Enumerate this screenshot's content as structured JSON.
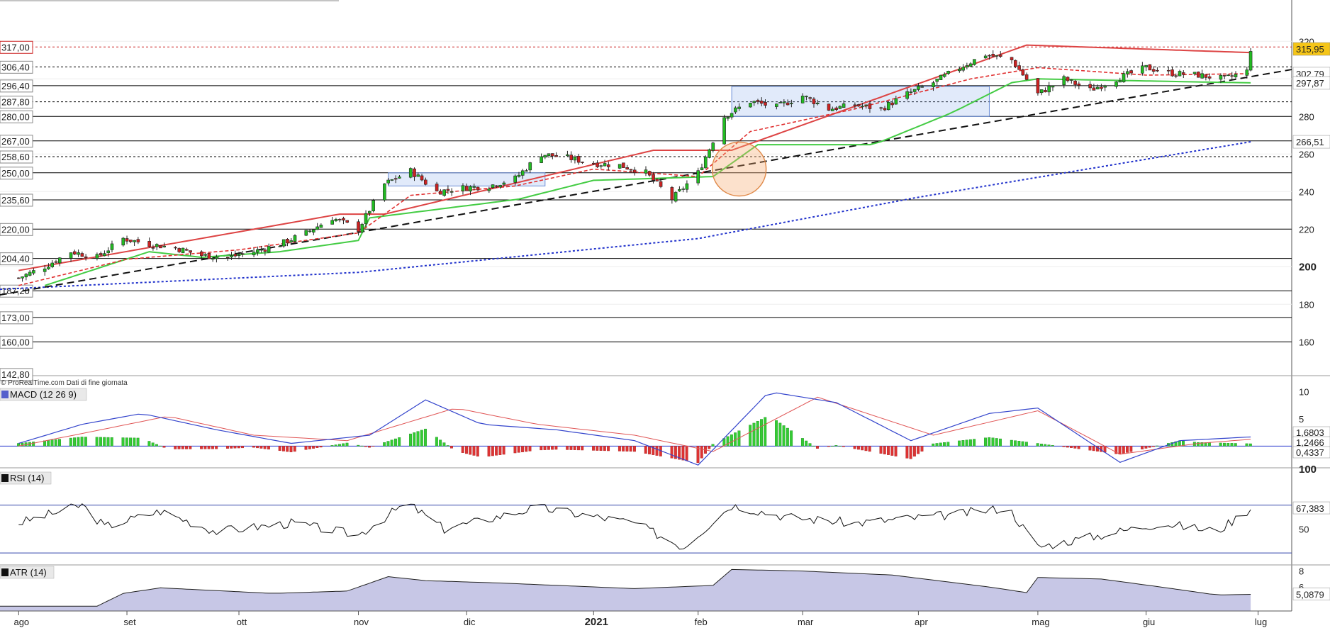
{
  "chart_data": {
    "type": "candlestick",
    "source_note": "© ProRealTime.com  Dati di fine giornata",
    "x_month_labels": [
      {
        "label": "ago",
        "date": "2020-08-03"
      },
      {
        "label": "set",
        "date": "2020-09-01"
      },
      {
        "label": "ott",
        "date": "2020-10-01"
      },
      {
        "label": "nov",
        "date": "2020-11-02"
      },
      {
        "label": "dic",
        "date": "2020-12-01"
      },
      {
        "label": "2021",
        "date": "2021-01-04",
        "bold": true
      },
      {
        "label": "feb",
        "date": "2021-02-01"
      },
      {
        "label": "mar",
        "date": "2021-03-01"
      },
      {
        "label": "apr",
        "date": "2021-04-01"
      },
      {
        "label": "mag",
        "date": "2021-05-03"
      },
      {
        "label": "giu",
        "date": "2021-06-01"
      },
      {
        "label": "lug",
        "date": "2021-07-01"
      }
    ],
    "x_range": [
      "2020-07-29",
      "2021-07-10"
    ],
    "price": {
      "y_ticks": [
        160,
        180,
        200,
        220,
        240,
        260,
        280,
        300,
        320
      ],
      "ylim": [
        142,
        342
      ],
      "levels_left": [
        {
          "label": "317,00",
          "value": 317.0,
          "style": "dotted-red",
          "color": "#cc2222"
        },
        {
          "label": "306,40",
          "value": 306.4,
          "style": "dotted"
        },
        {
          "label": "296,40",
          "value": 296.4,
          "style": "solid"
        },
        {
          "label": "287,80",
          "value": 287.8,
          "style": "dotted"
        },
        {
          "label": "280,00",
          "value": 280.0,
          "style": "solid"
        },
        {
          "label": "267,00",
          "value": 267.0,
          "style": "solid"
        },
        {
          "label": "258,60",
          "value": 258.6,
          "style": "dotted"
        },
        {
          "label": "250,00",
          "value": 250.0,
          "style": "solid"
        },
        {
          "label": "235,60",
          "value": 235.6,
          "style": "solid"
        },
        {
          "label": "220,00",
          "value": 220.0,
          "style": "solid"
        },
        {
          "label": "204,40",
          "value": 204.4,
          "style": "solid"
        },
        {
          "label": "187,20",
          "value": 187.2,
          "style": "solid"
        },
        {
          "label": "173,00",
          "value": 173.0,
          "style": "solid"
        },
        {
          "label": "160,00",
          "value": 160.0,
          "style": "solid"
        },
        {
          "label": "142,80",
          "value": 142.8,
          "style": "none"
        }
      ],
      "right_badges": [
        {
          "label": "315,95",
          "value": 315.95,
          "bg": "#f5c518",
          "fg": "#000000"
        },
        {
          "label": "302,79",
          "value": 302.79,
          "bg": "#ffffff",
          "fg": "#cc2222"
        },
        {
          "label": "297,87",
          "value": 297.87,
          "bg": "#ffffff",
          "fg": "#22aa22"
        },
        {
          "label": "266,51",
          "value": 266.51,
          "bg": "#ffffff",
          "fg": "#2233cc"
        }
      ],
      "ohlc_anchors": [
        [
          "2020-08-03",
          194
        ],
        [
          "2020-08-10",
          200
        ],
        [
          "2020-08-17",
          208
        ],
        [
          "2020-08-24",
          205
        ],
        [
          "2020-08-31",
          215
        ],
        [
          "2020-09-07",
          212
        ],
        [
          "2020-09-14",
          210
        ],
        [
          "2020-09-21",
          206
        ],
        [
          "2020-09-28",
          205
        ],
        [
          "2020-10-05",
          208
        ],
        [
          "2020-10-12",
          212
        ],
        [
          "2020-10-19",
          218
        ],
        [
          "2020-10-26",
          226
        ],
        [
          "2020-11-02",
          220
        ],
        [
          "2020-11-09",
          244
        ],
        [
          "2020-11-16",
          251
        ],
        [
          "2020-11-23",
          240
        ],
        [
          "2020-11-30",
          242
        ],
        [
          "2020-12-07",
          243
        ],
        [
          "2020-12-14",
          247
        ],
        [
          "2020-12-21",
          260
        ],
        [
          "2020-12-28",
          258
        ],
        [
          "2021-01-04",
          255
        ],
        [
          "2021-01-11",
          254
        ],
        [
          "2021-01-18",
          250
        ],
        [
          "2021-01-25",
          236
        ],
        [
          "2021-02-01",
          250
        ],
        [
          "2021-02-08",
          280
        ],
        [
          "2021-02-15",
          288
        ],
        [
          "2021-02-22",
          285
        ],
        [
          "2021-03-01",
          291
        ],
        [
          "2021-03-08",
          284
        ],
        [
          "2021-03-15",
          286
        ],
        [
          "2021-03-22",
          284
        ],
        [
          "2021-03-29",
          292
        ],
        [
          "2021-04-05",
          298
        ],
        [
          "2021-04-12",
          306
        ],
        [
          "2021-04-19",
          313
        ],
        [
          "2021-04-26",
          310
        ],
        [
          "2021-05-03",
          292
        ],
        [
          "2021-05-10",
          300
        ],
        [
          "2021-05-17",
          294
        ],
        [
          "2021-05-24",
          300
        ],
        [
          "2021-06-01",
          306
        ],
        [
          "2021-06-08",
          303
        ],
        [
          "2021-06-15",
          302
        ],
        [
          "2021-06-22",
          300
        ],
        [
          "2021-06-28",
          304
        ],
        [
          "2021-06-29",
          315.95
        ]
      ],
      "ma_long_anchors": [
        [
          "2020-07-29",
          188
        ],
        [
          "2020-11-02",
          197
        ],
        [
          "2021-02-01",
          215
        ],
        [
          "2021-04-01",
          237
        ],
        [
          "2021-06-29",
          266.51
        ]
      ],
      "ma_fast_anchors": [
        [
          "2020-08-03",
          190
        ],
        [
          "2020-09-01",
          204
        ],
        [
          "2020-10-01",
          209
        ],
        [
          "2020-11-02",
          218
        ],
        [
          "2020-11-16",
          238
        ],
        [
          "2020-12-14",
          243
        ],
        [
          "2021-01-04",
          252
        ],
        [
          "2021-02-01",
          248
        ],
        [
          "2021-02-15",
          272
        ],
        [
          "2021-03-15",
          284
        ],
        [
          "2021-04-15",
          300
        ],
        [
          "2021-05-03",
          306
        ],
        [
          "2021-06-01",
          302
        ],
        [
          "2021-06-29",
          302.79
        ]
      ],
      "support_green_anchors": [
        [
          "2020-08-10",
          190
        ],
        [
          "2020-08-24",
          199
        ],
        [
          "2020-09-07",
          208
        ],
        [
          "2020-09-21",
          205
        ],
        [
          "2020-10-12",
          208
        ],
        [
          "2020-11-02",
          214
        ],
        [
          "2020-11-05",
          226
        ],
        [
          "2020-12-15",
          236
        ],
        [
          "2021-01-04",
          246
        ],
        [
          "2021-02-05",
          248
        ],
        [
          "2021-02-17",
          265
        ],
        [
          "2021-03-20",
          265
        ],
        [
          "2021-04-10",
          282
        ],
        [
          "2021-04-26",
          298
        ],
        [
          "2021-05-03",
          300
        ],
        [
          "2021-06-29",
          297.87
        ]
      ],
      "resistance_red_anchors": [
        [
          "2020-08-03",
          198
        ],
        [
          "2020-10-28",
          228
        ],
        [
          "2020-11-09",
          228
        ],
        [
          "2021-01-20",
          262
        ],
        [
          "2021-02-10",
          262
        ],
        [
          "2021-04-30",
          318
        ],
        [
          "2021-06-29",
          314
        ]
      ],
      "trendline_black": [
        [
          "2020-07-29",
          185
        ],
        [
          "2021-07-10",
          305
        ]
      ],
      "boxes": [
        {
          "from": "2020-11-10",
          "to": "2020-12-22",
          "low": 243,
          "high": 250
        },
        {
          "from": "2021-02-10",
          "to": "2021-04-20",
          "low": 280,
          "high": 296
        }
      ],
      "circle": {
        "date": "2021-02-12",
        "value": 252
      }
    },
    "macd": {
      "label": "MACD (12 26 9)",
      "y_ticks": [
        5,
        10
      ],
      "ylim": [
        -4,
        11
      ],
      "right_badges": [
        {
          "label": "1,6803",
          "value": 1.6803,
          "fg": "#2233cc"
        },
        {
          "label": "1,2466",
          "value": 1.2466,
          "fg": "#cc2222"
        },
        {
          "label": "0,4337",
          "value": 0.4337,
          "fg": "#cc2222"
        }
      ],
      "macd_anchors": [
        [
          "2020-08-03",
          0.5
        ],
        [
          "2020-08-20",
          4
        ],
        [
          "2020-09-05",
          6
        ],
        [
          "2020-09-25",
          3
        ],
        [
          "2020-10-15",
          0.5
        ],
        [
          "2020-11-05",
          2
        ],
        [
          "2020-11-20",
          8.5
        ],
        [
          "2020-12-05",
          4
        ],
        [
          "2020-12-25",
          3
        ],
        [
          "2021-01-15",
          1
        ],
        [
          "2021-02-01",
          -3.5
        ],
        [
          "2021-02-20",
          10
        ],
        [
          "2021-03-10",
          8
        ],
        [
          "2021-03-30",
          1
        ],
        [
          "2021-04-20",
          6
        ],
        [
          "2021-05-03",
          7
        ],
        [
          "2021-05-25",
          -3
        ],
        [
          "2021-06-10",
          1
        ],
        [
          "2021-06-29",
          1.6803
        ]
      ],
      "signal_anchors": [
        [
          "2020-08-03",
          0
        ],
        [
          "2020-08-25",
          3
        ],
        [
          "2020-09-12",
          5.5
        ],
        [
          "2020-10-05",
          2
        ],
        [
          "2020-10-30",
          1
        ],
        [
          "2020-11-28",
          7
        ],
        [
          "2020-12-20",
          4
        ],
        [
          "2021-01-15",
          2
        ],
        [
          "2021-02-05",
          -1
        ],
        [
          "2021-03-05",
          9
        ],
        [
          "2021-04-05",
          2
        ],
        [
          "2021-05-03",
          6.5
        ],
        [
          "2021-05-25",
          -1.5
        ],
        [
          "2021-06-15",
          0.5
        ],
        [
          "2021-06-29",
          1.2466
        ]
      ]
    },
    "rsi": {
      "label": "RSI (14)",
      "y_ticks": [
        50,
        100
      ],
      "ylim": [
        20,
        100
      ],
      "bands": [
        70,
        30
      ],
      "right_badge": {
        "label": "67,383",
        "value": 67.383
      },
      "rsi_anchors": [
        [
          "2020-08-03",
          55
        ],
        [
          "2020-08-20",
          70
        ],
        [
          "2020-08-26",
          52
        ],
        [
          "2020-09-10",
          65
        ],
        [
          "2020-09-25",
          48
        ],
        [
          "2020-10-15",
          55
        ],
        [
          "2020-11-02",
          45
        ],
        [
          "2020-11-15",
          72
        ],
        [
          "2020-11-25",
          50
        ],
        [
          "2020-12-20",
          68
        ],
        [
          "2021-01-15",
          55
        ],
        [
          "2021-01-28",
          35
        ],
        [
          "2021-02-10",
          70
        ],
        [
          "2021-02-25",
          60
        ],
        [
          "2021-03-15",
          55
        ],
        [
          "2021-04-10",
          62
        ],
        [
          "2021-04-25",
          68
        ],
        [
          "2021-05-03",
          35
        ],
        [
          "2021-05-20",
          45
        ],
        [
          "2021-06-05",
          55
        ],
        [
          "2021-06-20",
          48
        ],
        [
          "2021-06-29",
          67.383
        ]
      ]
    },
    "atr": {
      "label": "ATR (14)",
      "y_ticks": [
        6,
        8
      ],
      "ylim": [
        3,
        8.5
      ],
      "right_badge": {
        "label": "5,0879",
        "value": 5.0879
      },
      "atr_anchors": [
        [
          "2020-07-29",
          3.6
        ],
        [
          "2020-08-24",
          3.6
        ],
        [
          "2020-08-31",
          5.2
        ],
        [
          "2020-09-10",
          5.9
        ],
        [
          "2020-10-10",
          5.2
        ],
        [
          "2020-10-30",
          5.5
        ],
        [
          "2020-11-10",
          7.3
        ],
        [
          "2020-11-20",
          6.8
        ],
        [
          "2020-12-10",
          6.5
        ],
        [
          "2021-01-15",
          5.8
        ],
        [
          "2021-02-05",
          6.2
        ],
        [
          "2021-02-10",
          8.2
        ],
        [
          "2021-03-01",
          8.0
        ],
        [
          "2021-03-25",
          7.5
        ],
        [
          "2021-04-20",
          6.0
        ],
        [
          "2021-04-30",
          5.3
        ],
        [
          "2021-05-03",
          7.2
        ],
        [
          "2021-05-20",
          7.0
        ],
        [
          "2021-06-05",
          6.0
        ],
        [
          "2021-06-20",
          5.0
        ],
        [
          "2021-06-29",
          5.0879
        ]
      ]
    }
  }
}
